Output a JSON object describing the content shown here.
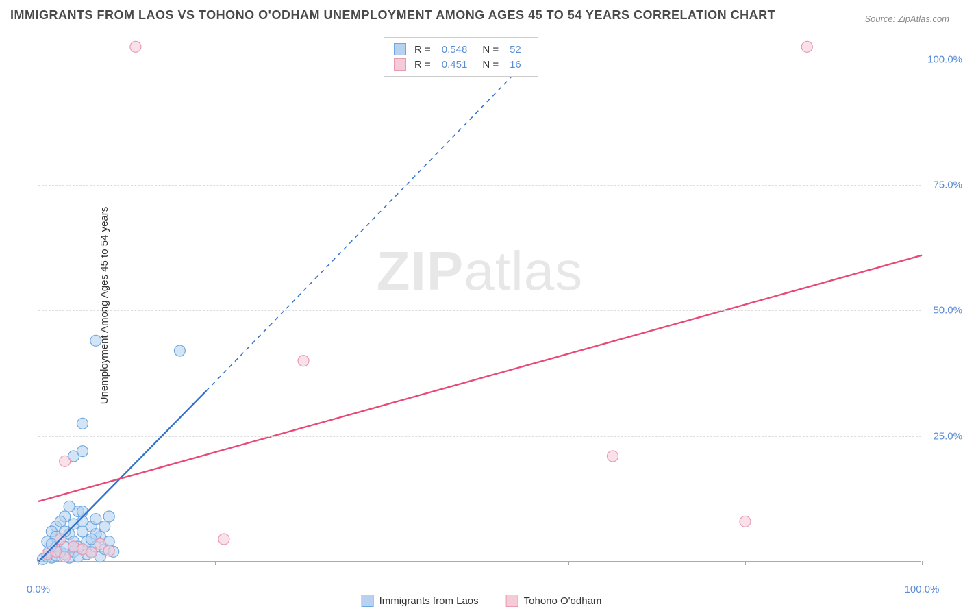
{
  "title": "IMMIGRANTS FROM LAOS VS TOHONO O'ODHAM UNEMPLOYMENT AMONG AGES 45 TO 54 YEARS CORRELATION CHART",
  "source": "Source: ZipAtlas.com",
  "ylabel": "Unemployment Among Ages 45 to 54 years",
  "watermark_bold": "ZIP",
  "watermark_rest": "atlas",
  "chart": {
    "type": "scatter",
    "xlim": [
      0,
      100
    ],
    "ylim": [
      0,
      105
    ],
    "x_ticks": [
      0,
      20,
      40,
      60,
      80,
      100
    ],
    "x_tick_labels": [
      "0.0%",
      "",
      "",
      "",
      "",
      "100.0%"
    ],
    "y_ticks": [
      25,
      50,
      75,
      100
    ],
    "y_tick_labels": [
      "25.0%",
      "50.0%",
      "75.0%",
      "100.0%"
    ],
    "background_color": "#ffffff",
    "grid_color": "#dddddd",
    "axis_color": "#aaaaaa",
    "tick_label_color": "#5b8dd6",
    "marker_radius": 8,
    "marker_stroke_width": 1.2,
    "series": [
      {
        "name": "Immigrants from Laos",
        "label": "Immigrants from Laos",
        "color_fill": "#b6d2f0",
        "color_stroke": "#6fa8e0",
        "R": "0.548",
        "N": "52",
        "regression": {
          "x1": 0,
          "y1": 0,
          "x2": 19,
          "y2": 34,
          "solid_until_x": 19,
          "dashed_to_x": 56,
          "dashed_to_y": 101,
          "color": "#3273c9",
          "width": 2.4
        },
        "points": [
          [
            0.5,
            0.5
          ],
          [
            1,
            1
          ],
          [
            1.2,
            2
          ],
          [
            1.5,
            0.8
          ],
          [
            2,
            1.2
          ],
          [
            2,
            3
          ],
          [
            2.5,
            2
          ],
          [
            2.5,
            4.5
          ],
          [
            3,
            1.5
          ],
          [
            3,
            3
          ],
          [
            3.5,
            0.8
          ],
          [
            3.5,
            5.5
          ],
          [
            4,
            2
          ],
          [
            4,
            4
          ],
          [
            4.5,
            1
          ],
          [
            4.5,
            3
          ],
          [
            5,
            2.5
          ],
          [
            5,
            6
          ],
          [
            5.5,
            1.5
          ],
          [
            5.5,
            4
          ],
          [
            6,
            2
          ],
          [
            6,
            7
          ],
          [
            6.5,
            3
          ],
          [
            6.5,
            8.5
          ],
          [
            7,
            1
          ],
          [
            7,
            5
          ],
          [
            7.5,
            2.5
          ],
          [
            8,
            4
          ],
          [
            8,
            9
          ],
          [
            8.5,
            2
          ],
          [
            4.5,
            10
          ],
          [
            2,
            7
          ],
          [
            3,
            9
          ],
          [
            1.5,
            6
          ],
          [
            2.5,
            8
          ],
          [
            5,
            10
          ],
          [
            4,
            7.5
          ],
          [
            6.5,
            5.5
          ],
          [
            7.5,
            7
          ],
          [
            3.5,
            11
          ],
          [
            4,
            21
          ],
          [
            5,
            22
          ],
          [
            5,
            27.5
          ],
          [
            6.5,
            44
          ],
          [
            16,
            42
          ],
          [
            1,
            4
          ],
          [
            2,
            5
          ],
          [
            3,
            6
          ],
          [
            4,
            3
          ],
          [
            5,
            8
          ],
          [
            1.5,
            3.5
          ],
          [
            6,
            4.5
          ]
        ]
      },
      {
        "name": "Tohono O'odham",
        "label": "Tohono O'odham",
        "color_fill": "#f6cbd8",
        "color_stroke": "#e89ab0",
        "R": "0.451",
        "N": "16",
        "regression": {
          "x1": 0,
          "y1": 12,
          "x2": 100,
          "y2": 61,
          "color": "#e84a78",
          "width": 2.4
        },
        "points": [
          [
            1,
            1.5
          ],
          [
            2,
            2
          ],
          [
            3,
            1
          ],
          [
            4,
            3
          ],
          [
            5,
            2.5
          ],
          [
            6,
            1.8
          ],
          [
            7,
            3.5
          ],
          [
            8,
            2.2
          ],
          [
            2.5,
            4.5
          ],
          [
            3,
            20
          ],
          [
            21,
            4.5
          ],
          [
            30,
            40
          ],
          [
            65,
            21
          ],
          [
            80,
            8
          ],
          [
            11,
            102.5
          ],
          [
            87,
            102.5
          ]
        ]
      }
    ]
  },
  "legend_top": {
    "r_label": "R =",
    "n_label": "N ="
  }
}
